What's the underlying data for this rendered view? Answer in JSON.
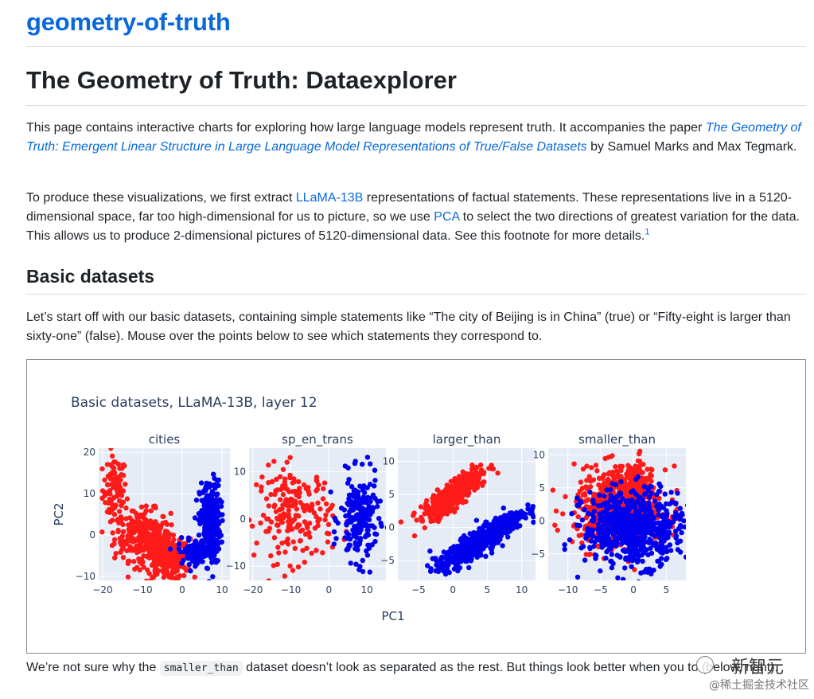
{
  "repo": {
    "title": "geometry-of-truth"
  },
  "page": {
    "heading": "The Geometry of Truth: Dataexplorer"
  },
  "intro": {
    "t1": "This page contains interactive charts for exploring how large language models represent truth. It accompanies the paper ",
    "paper_link": "The Geometry of Truth: Emergent Linear Structure in Large Language Model Representations of True/False Datasets",
    "t2": " by Samuel Marks and Max Tegmark."
  },
  "method": {
    "t1": "To produce these visualizations, we first extract ",
    "llama_link": "LLaMA-13B",
    "t2": " representations of factual statements. These representations live in a 5120-dimensional space, far too high-dimensional for us to picture, so we use ",
    "pca_link": "PCA",
    "t3": " to select the two directions of greatest variation for the data. This allows us to produce 2-dimensional pictures of 5120-dimensional data. See this footnote for more details.",
    "footnote": "1"
  },
  "basic": {
    "heading": "Basic datasets",
    "text": "Let’s start off with our basic datasets, containing simple statements like “The city of Beijing is in China” (true) or “Fifty-eight is larger than sixty-one” (false). Mouse over the points below to see which statements they correspond to."
  },
  "after": {
    "t1": "We’re not sure why the ",
    "code": "smaller_than",
    "t2": " dataset doesn’t look as separated as the rest. But things look better when you ",
    "t3": "to (below, right)."
  },
  "watermark": {
    "logo": "新智元",
    "sub": "@稀土掘金技术社区"
  },
  "colors": {
    "true": "#0000ee",
    "false": "#ff1a1a",
    "plot_bg": "#e5ecf6",
    "link": "#0969da"
  },
  "chart_data": [
    {
      "type": "scatter",
      "title": "Basic datasets, LLaMA-13B, layer 12",
      "subplot_title": "cities",
      "xlabel": "PC1",
      "ylabel": "PC2",
      "xlim": [
        -21,
        12
      ],
      "ylim": [
        -11,
        21
      ],
      "xticks": [
        -20,
        -10,
        0,
        10
      ],
      "yticks": [
        -10,
        0,
        10,
        20
      ],
      "series": [
        {
          "color": "#ff1a1a",
          "clusters": [
            {
              "x": -17,
              "y": 11,
              "sx": 1.5,
              "sy": 4,
              "n": 90
            },
            {
              "x": -10,
              "y": 0,
              "sx": 3.5,
              "sy": 3,
              "n": 260
            },
            {
              "x": -4,
              "y": -6,
              "sx": 3,
              "sy": 2.5,
              "n": 260
            }
          ]
        },
        {
          "color": "#0000ee",
          "clusters": [
            {
              "x": 7,
              "y": 3,
              "sx": 1.3,
              "sy": 5,
              "n": 330
            },
            {
              "x": 3,
              "y": -4,
              "sx": 2,
              "sy": 1.5,
              "n": 80
            }
          ]
        }
      ]
    },
    {
      "type": "scatter",
      "subplot_title": "sp_en_trans",
      "xlim": [
        -21,
        15
      ],
      "ylim": [
        -13,
        15
      ],
      "xticks": [
        -20,
        -10,
        0,
        10
      ],
      "yticks": [
        -10,
        0,
        10
      ],
      "series": [
        {
          "color": "#ff1a1a",
          "clusters": [
            {
              "x": -9,
              "y": 1,
              "sx": 5,
              "sy": 5,
              "n": 200
            }
          ]
        },
        {
          "color": "#0000ee",
          "clusters": [
            {
              "x": 8,
              "y": 0,
              "sx": 2.5,
              "sy": 4.5,
              "n": 200
            }
          ]
        }
      ]
    },
    {
      "type": "scatter",
      "subplot_title": "larger_than",
      "xlim": [
        -8,
        12
      ],
      "ylim": [
        -8,
        12
      ],
      "xticks": [
        -5,
        0,
        5,
        10
      ],
      "yticks": [
        -5,
        0,
        5,
        10
      ],
      "series": [
        {
          "color": "#ff1a1a",
          "clusters": [
            {
              "x": 0,
              "y": 5,
              "sx": 2.5,
              "sy": 0.8,
              "n": 500,
              "rot": 0.7
            }
          ]
        },
        {
          "color": "#0000ee",
          "clusters": [
            {
              "x": 4,
              "y": -2,
              "sx": 3.5,
              "sy": 0.8,
              "n": 650,
              "rot": 0.6
            }
          ]
        }
      ]
    },
    {
      "type": "scatter",
      "subplot_title": "smaller_than",
      "xlim": [
        -13,
        8
      ],
      "ylim": [
        -9,
        11
      ],
      "xticks": [
        -10,
        -5,
        0,
        5
      ],
      "yticks": [
        -5,
        0,
        5,
        10
      ],
      "series": [
        {
          "color": "#ff1a1a",
          "clusters": [
            {
              "x": -2,
              "y": 2,
              "sx": 3.5,
              "sy": 3,
              "n": 550
            },
            {
              "x": 0,
              "y": 5,
              "sx": 1.2,
              "sy": 2,
              "n": 120
            }
          ]
        },
        {
          "color": "#0000ee",
          "clusters": [
            {
              "x": 0,
              "y": -1,
              "sx": 3.8,
              "sy": 2.8,
              "n": 650
            }
          ]
        }
      ]
    }
  ]
}
